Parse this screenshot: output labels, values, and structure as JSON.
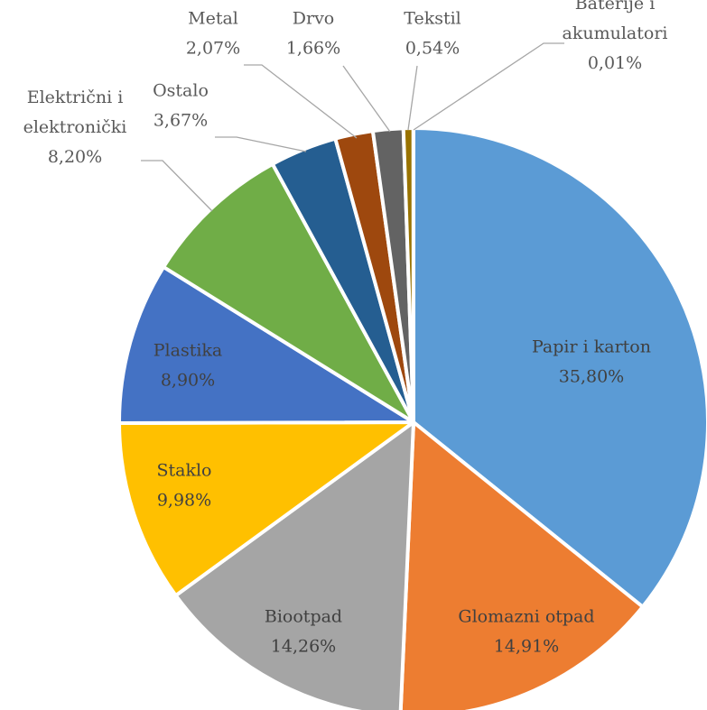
{
  "chart_data": {
    "type": "pie",
    "title": "",
    "slices": [
      {
        "category": "Papir i karton",
        "value": 35.8,
        "label": "35,80%",
        "color": "#5b9bd5"
      },
      {
        "category": "Glomazni otpad",
        "value": 14.91,
        "label": "14,91%",
        "color": "#ed7d31"
      },
      {
        "category": "Biootpad",
        "value": 14.26,
        "label": "14,26%",
        "color": "#a5a5a5"
      },
      {
        "category": "Staklo",
        "value": 9.98,
        "label": "9,98%",
        "color": "#ffc000"
      },
      {
        "category": "Plastika",
        "value": 8.9,
        "label": "8,90%",
        "color": "#4472c4"
      },
      {
        "category": "Električni i elektronički",
        "category_lines": [
          "Električni i",
          "elektronički"
        ],
        "value": 8.2,
        "label": "8,20%",
        "color": "#70ad47"
      },
      {
        "category": "Ostalo",
        "value": 3.67,
        "label": "3,67%",
        "color": "#255e91"
      },
      {
        "category": "Metal",
        "value": 2.07,
        "label": "2,07%",
        "color": "#9e480e"
      },
      {
        "category": "Drvo",
        "value": 1.66,
        "label": "1,66%",
        "color": "#636363"
      },
      {
        "category": "Tekstil",
        "value": 0.54,
        "label": "0,54%",
        "color": "#997300"
      },
      {
        "category": "Baterije i akumulatori",
        "category_lines": [
          "Baterije i",
          "akumulatori"
        ],
        "value": 0.01,
        "label": "0,01%",
        "color": "#264478"
      }
    ]
  }
}
